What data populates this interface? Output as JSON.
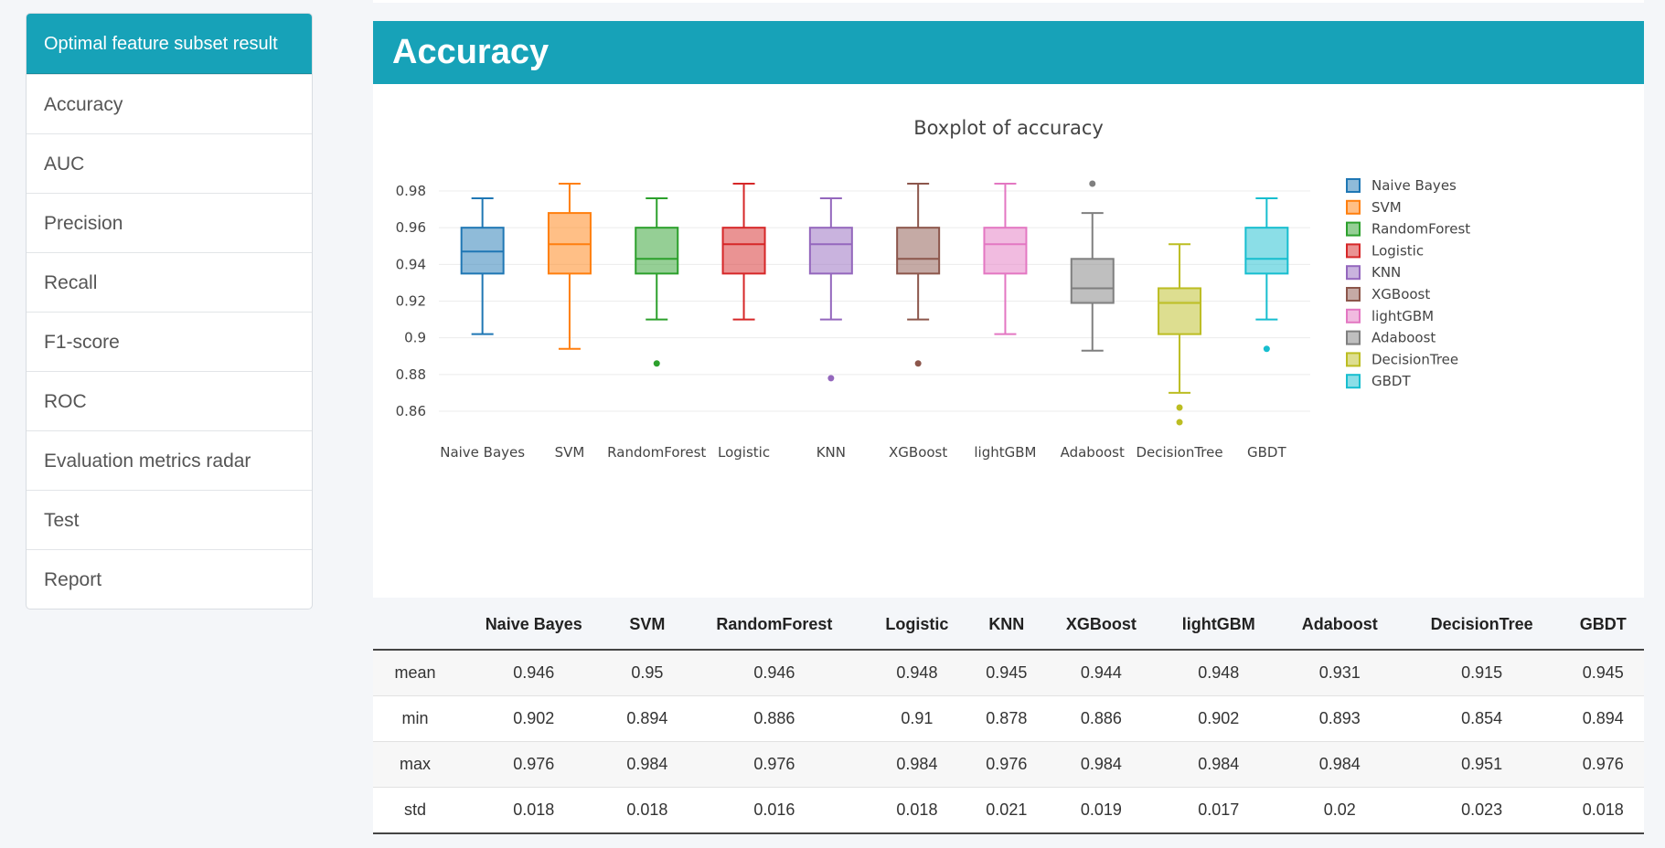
{
  "sidebar": {
    "header": "Optimal feature subset result",
    "items": [
      {
        "label": "Accuracy"
      },
      {
        "label": "AUC"
      },
      {
        "label": "Precision"
      },
      {
        "label": "Recall"
      },
      {
        "label": "F1-score"
      },
      {
        "label": "ROC"
      },
      {
        "label": "Evaluation metrics radar"
      },
      {
        "label": "Test"
      },
      {
        "label": "Report"
      }
    ]
  },
  "page": {
    "title": "Accuracy"
  },
  "chart_data": {
    "type": "box",
    "title": "Boxplot of accuracy",
    "xlabel": "",
    "ylabel": "",
    "ylim": [
      0.845,
      0.99
    ],
    "yticks": [
      0.86,
      0.88,
      0.9,
      0.92,
      0.94,
      0.96,
      0.98
    ],
    "ytick_labels": [
      "0.86",
      "0.88",
      "0.9",
      "0.92",
      "0.94",
      "0.96",
      "0.98"
    ],
    "grid": true,
    "legend_placement": "right",
    "series": [
      {
        "name": "Naive Bayes",
        "color": "#1f77b4",
        "whisker_low": 0.902,
        "q1": 0.935,
        "median": 0.947,
        "q3": 0.96,
        "whisker_high": 0.976,
        "outliers": []
      },
      {
        "name": "SVM",
        "color": "#ff7f0e",
        "whisker_low": 0.894,
        "q1": 0.935,
        "median": 0.951,
        "q3": 0.968,
        "whisker_high": 0.984,
        "outliers": []
      },
      {
        "name": "RandomForest",
        "color": "#2ca02c",
        "whisker_low": 0.91,
        "q1": 0.935,
        "median": 0.943,
        "q3": 0.96,
        "whisker_high": 0.976,
        "outliers": [
          0.886
        ]
      },
      {
        "name": "Logistic",
        "color": "#d62728",
        "whisker_low": 0.91,
        "q1": 0.935,
        "median": 0.951,
        "q3": 0.96,
        "whisker_high": 0.984,
        "outliers": []
      },
      {
        "name": "KNN",
        "color": "#9467bd",
        "whisker_low": 0.91,
        "q1": 0.935,
        "median": 0.951,
        "q3": 0.96,
        "whisker_high": 0.976,
        "outliers": [
          0.878
        ]
      },
      {
        "name": "XGBoost",
        "color": "#8c564b",
        "whisker_low": 0.91,
        "q1": 0.935,
        "median": 0.943,
        "q3": 0.96,
        "whisker_high": 0.984,
        "outliers": [
          0.886
        ]
      },
      {
        "name": "lightGBM",
        "color": "#e377c2",
        "whisker_low": 0.902,
        "q1": 0.935,
        "median": 0.951,
        "q3": 0.96,
        "whisker_high": 0.984,
        "outliers": []
      },
      {
        "name": "Adaboost",
        "color": "#7f7f7f",
        "whisker_low": 0.893,
        "q1": 0.919,
        "median": 0.927,
        "q3": 0.943,
        "whisker_high": 0.968,
        "outliers": [
          0.984
        ]
      },
      {
        "name": "DecisionTree",
        "color": "#bcbd22",
        "whisker_low": 0.87,
        "q1": 0.902,
        "median": 0.919,
        "q3": 0.927,
        "whisker_high": 0.951,
        "outliers": [
          0.862,
          0.854
        ]
      },
      {
        "name": "GBDT",
        "color": "#17becf",
        "whisker_low": 0.91,
        "q1": 0.935,
        "median": 0.943,
        "q3": 0.96,
        "whisker_high": 0.976,
        "outliers": [
          0.894
        ]
      }
    ]
  },
  "table": {
    "row_header": "",
    "columns": [
      "Naive Bayes",
      "SVM",
      "RandomForest",
      "Logistic",
      "KNN",
      "XGBoost",
      "lightGBM",
      "Adaboost",
      "DecisionTree",
      "GBDT"
    ],
    "rows": [
      {
        "label": "mean",
        "values": [
          "0.946",
          "0.95",
          "0.946",
          "0.948",
          "0.945",
          "0.944",
          "0.948",
          "0.931",
          "0.915",
          "0.945"
        ]
      },
      {
        "label": "min",
        "values": [
          "0.902",
          "0.894",
          "0.886",
          "0.91",
          "0.878",
          "0.886",
          "0.902",
          "0.893",
          "0.854",
          "0.894"
        ]
      },
      {
        "label": "max",
        "values": [
          "0.976",
          "0.984",
          "0.976",
          "0.984",
          "0.976",
          "0.984",
          "0.984",
          "0.984",
          "0.951",
          "0.976"
        ]
      },
      {
        "label": "std",
        "values": [
          "0.018",
          "0.018",
          "0.016",
          "0.018",
          "0.021",
          "0.019",
          "0.017",
          "0.02",
          "0.023",
          "0.018"
        ]
      }
    ]
  }
}
